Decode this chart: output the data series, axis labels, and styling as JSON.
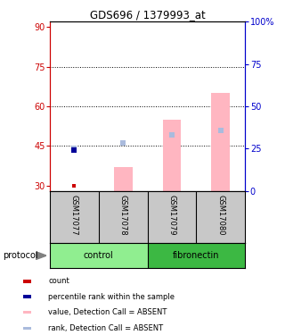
{
  "title": "GDS696 / 1379993_at",
  "samples": [
    "GSM17077",
    "GSM17078",
    "GSM17079",
    "GSM17080"
  ],
  "groups": [
    "control",
    "control",
    "fibronectin",
    "fibronectin"
  ],
  "control_color": "#90EE90",
  "fibronectin_color": "#3CB843",
  "ylim_left": [
    28,
    92
  ],
  "ylim_right": [
    0,
    100
  ],
  "yticks_left": [
    30,
    45,
    60,
    75,
    90
  ],
  "yticks_right": [
    0,
    25,
    50,
    75,
    100
  ],
  "yright_labels": [
    "0",
    "25",
    "50",
    "75",
    "100%"
  ],
  "dotted_lines": [
    45,
    60,
    75
  ],
  "bar_bottom": 28,
  "pink_bar_tops": [
    28,
    37,
    55,
    65
  ],
  "pink_bar_color": "#FFB6C1",
  "blue_sq_vals": [
    44,
    46,
    49,
    51
  ],
  "blue_sq_color": "#AABBDD",
  "red_pts": [
    [
      0,
      30.0
    ]
  ],
  "red_color": "#CC0000",
  "navy_pts": [
    [
      0,
      43.5
    ]
  ],
  "navy_color": "#000099",
  "legend_items": [
    {
      "color": "#CC0000",
      "label": "count"
    },
    {
      "color": "#000099",
      "label": "percentile rank within the sample"
    },
    {
      "color": "#FFB6C1",
      "label": "value, Detection Call = ABSENT"
    },
    {
      "color": "#AABBDD",
      "label": "rank, Detection Call = ABSENT"
    }
  ],
  "protocol_label": "protocol",
  "background_color": "#ffffff",
  "left_axis_color": "#CC0000",
  "right_axis_color": "#0000CC",
  "gray_color": "#C8C8C8"
}
